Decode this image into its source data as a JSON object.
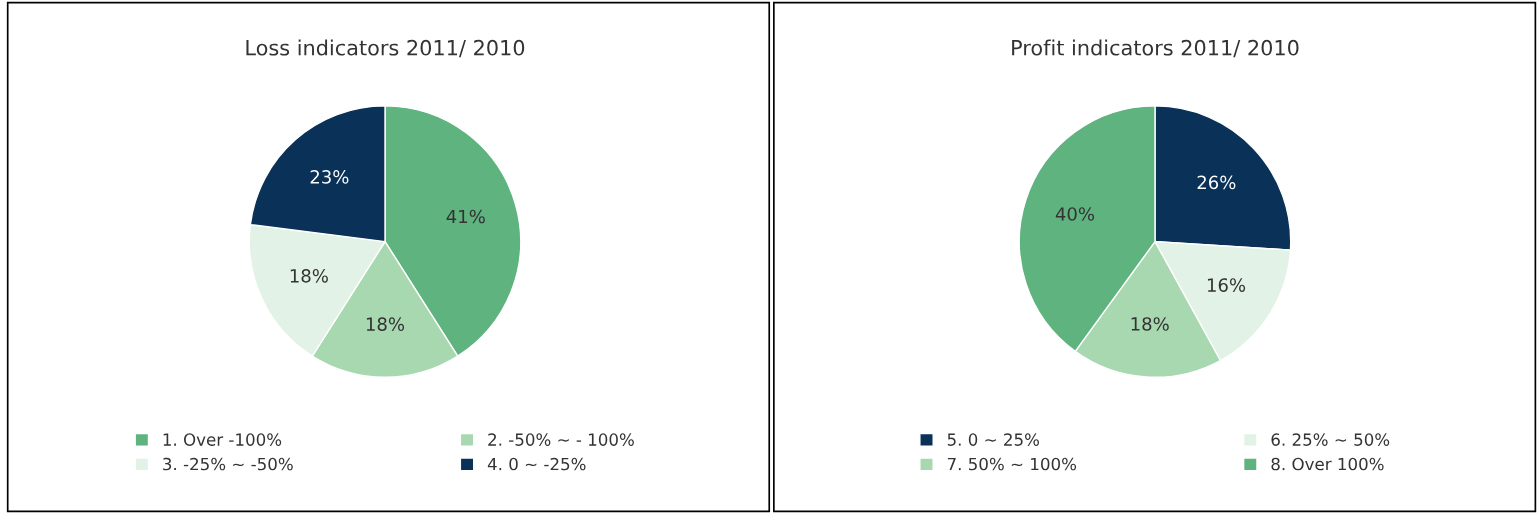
{
  "chart_data": [
    {
      "type": "pie",
      "title": "Loss indicators 2011/ 2010",
      "categories": [
        "1. Over -100%",
        "2. -50% ~ - 100%",
        "3. -25% ~ -50%",
        "4. 0 ~ -25%"
      ],
      "values": [
        41,
        18,
        18,
        23
      ],
      "value_labels": [
        "41%",
        "18%",
        "18%",
        "23%"
      ],
      "colors": [
        "#5fb37f",
        "#a8d8b0",
        "#e2f2e6",
        "#0a3158"
      ],
      "legend": "bottom"
    },
    {
      "type": "pie",
      "title": "Profit indicators 2011/ 2010",
      "categories": [
        "5. 0 ~ 25%",
        "6. 25% ~ 50%",
        "7. 50% ~ 100%",
        "8. Over 100%"
      ],
      "values": [
        26,
        16,
        18,
        40
      ],
      "value_labels": [
        "26%",
        "16%",
        "18%",
        "40%"
      ],
      "colors": [
        "#0a3158",
        "#e2f2e6",
        "#a8d8b0",
        "#5fb37f"
      ],
      "legend": "bottom"
    }
  ]
}
